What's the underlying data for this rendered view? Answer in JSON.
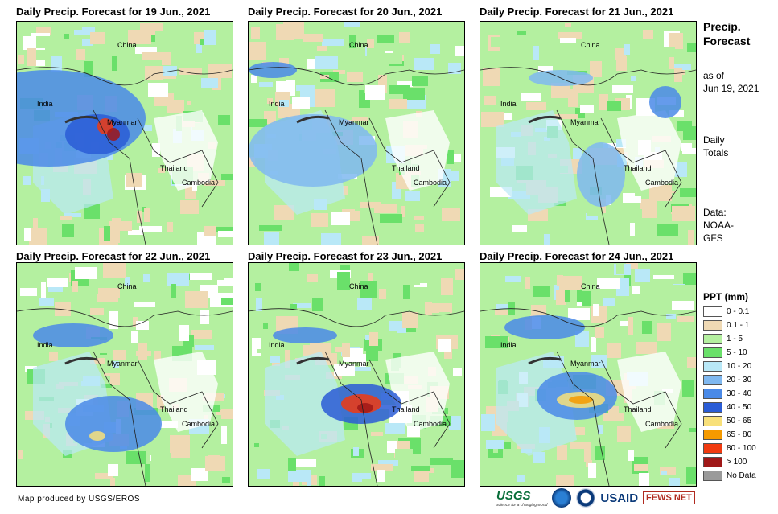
{
  "panels": [
    {
      "title": "Daily Precip. Forecast for 19 Jun., 2021"
    },
    {
      "title": "Daily Precip. Forecast for 20 Jun., 2021"
    },
    {
      "title": "Daily Precip. Forecast for 21 Jun., 2021"
    },
    {
      "title": "Daily Precip. Forecast for 22 Jun., 2021"
    },
    {
      "title": "Daily Precip. Forecast for 23 Jun., 2021"
    },
    {
      "title": "Daily Precip. Forecast for 24 Jun., 2021"
    }
  ],
  "map_labels": {
    "china": "China",
    "india": "India",
    "myanmar": "Myanmar",
    "thailand": "Thailand",
    "cambodia": "Cambodia"
  },
  "side": {
    "title_line1": "Precip.",
    "title_line2": "Forecast",
    "asof_line1": "as of",
    "asof_line2": "Jun 19, 2021",
    "daily_line1": "Daily",
    "daily_line2": "Totals",
    "data_line1": "Data:",
    "data_line2": "NOAA-",
    "data_line3": "GFS"
  },
  "legend": {
    "title": "PPT (mm)",
    "items": [
      {
        "label": "0 - 0.1",
        "color": "#ffffff"
      },
      {
        "label": "0.1 - 1",
        "color": "#efd9b4"
      },
      {
        "label": "1 - 5",
        "color": "#b4f0a0"
      },
      {
        "label": "5 - 10",
        "color": "#6ae06a"
      },
      {
        "label": "10 - 20",
        "color": "#b9e8f7"
      },
      {
        "label": "20 - 30",
        "color": "#7fb8f0"
      },
      {
        "label": "30 - 40",
        "color": "#4a8ae8"
      },
      {
        "label": "40 - 50",
        "color": "#2a5cd6"
      },
      {
        "label": "50 - 65",
        "color": "#f8e07a"
      },
      {
        "label": "65 - 80",
        "color": "#f59a00"
      },
      {
        "label": "80 - 100",
        "color": "#f03a10"
      },
      {
        "label": "> 100",
        "color": "#a01818"
      },
      {
        "label": "No Data",
        "color": "#9a9a9a"
      }
    ]
  },
  "credit": "Map produced by USGS/EROS",
  "logos": {
    "usgs": "USGS",
    "usgs_tagline": "science for a changing world",
    "usaid": "USAID",
    "fewsnet": "FEWS NET"
  }
}
